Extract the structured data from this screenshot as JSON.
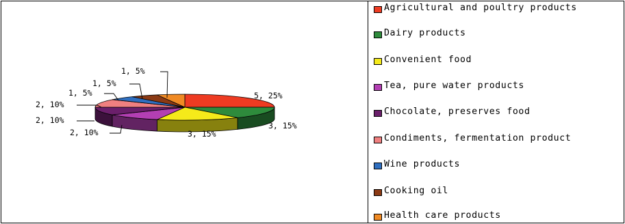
{
  "chart_data": {
    "type": "pie",
    "title": "",
    "slices": [
      {
        "name": "Agricultural and poultry products",
        "count": 5,
        "percent": 25,
        "label": "5, 25%",
        "color": "#ee3b22"
      },
      {
        "name": "Dairy products",
        "count": 3,
        "percent": 15,
        "label": "3, 15%",
        "color": "#2e8b3c"
      },
      {
        "name": "Convenient food",
        "count": 3,
        "percent": 15,
        "label": "3, 15%",
        "color": "#f5ea1a"
      },
      {
        "name": "Tea, pure water products",
        "count": 2,
        "percent": 10,
        "label": "2, 10%",
        "color": "#b33fb3"
      },
      {
        "name": "Chocolate, preserves food",
        "count": 2,
        "percent": 10,
        "label": "2, 10%",
        "color": "#6b1f6b"
      },
      {
        "name": "Condiments, fermentation product",
        "count": 2,
        "percent": 10,
        "label": "2, 10%",
        "color": "#f08080"
      },
      {
        "name": "Wine products",
        "count": 1,
        "percent": 5,
        "label": "1, 5%",
        "color": "#2f6fc0"
      },
      {
        "name": "Cooking oil",
        "count": 1,
        "percent": 5,
        "label": "1, 5%",
        "color": "#8b3a14"
      },
      {
        "name": "Health care products",
        "count": 1,
        "percent": 5,
        "label": "1, 5%",
        "color": "#f08a24"
      }
    ],
    "legend_position": "right"
  }
}
